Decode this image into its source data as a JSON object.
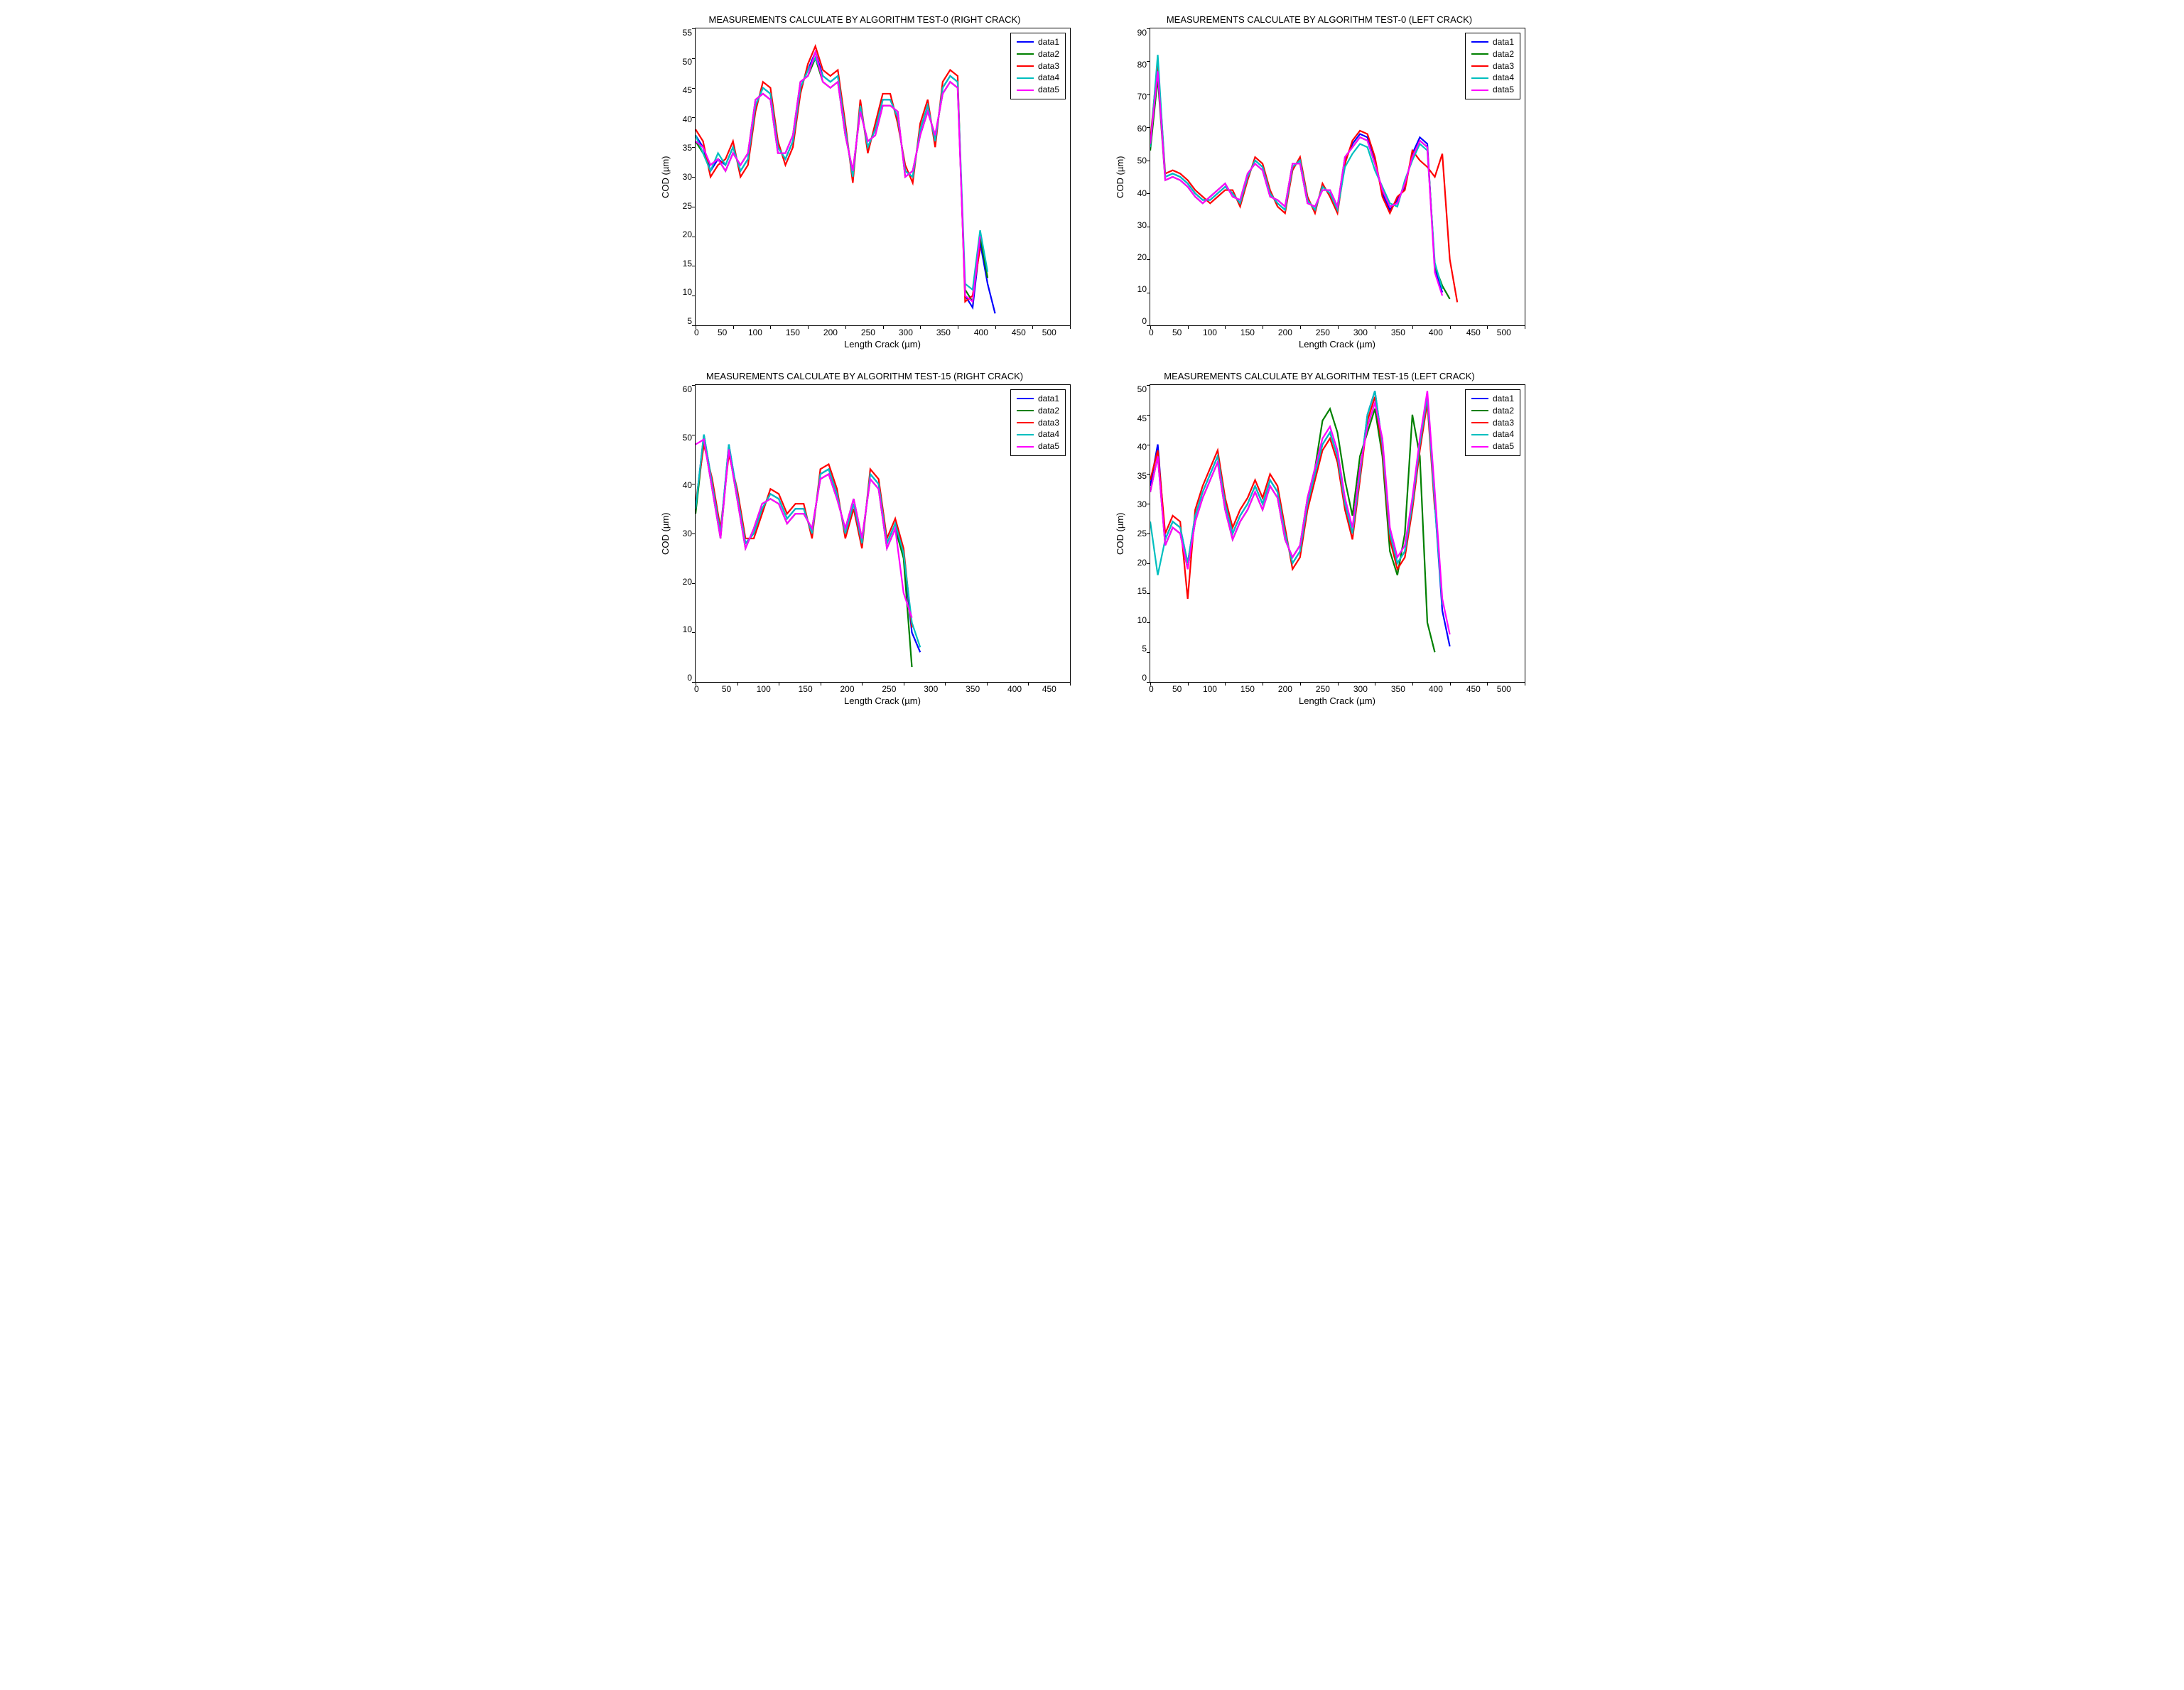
{
  "series_colors": [
    "#0000ff",
    "#008000",
    "#ff0000",
    "#00bfbf",
    "#ff00ff"
  ],
  "legend_labels": [
    "data1",
    "data2",
    "data3",
    "data4",
    "data5"
  ],
  "background_color": "#ffffff",
  "axis_color": "#000000",
  "title_fontsize": 13,
  "label_fontsize": 13,
  "tick_fontsize": 12,
  "line_width": 1,
  "panels": [
    {
      "id": "p1",
      "title": "MEASUREMENTS CALCULATE BY ALGORITHM TEST-0 (RIGHT CRACK)",
      "xlabel": "Length Crack (µm)",
      "ylabel": "COD (µm)",
      "xlim": [
        0,
        500
      ],
      "xtick_step": 50,
      "ylim": [
        5,
        55
      ],
      "ytick_step": 5,
      "type": "line",
      "xvals": [
        0,
        10,
        20,
        30,
        40,
        50,
        60,
        70,
        80,
        90,
        100,
        110,
        120,
        130,
        140,
        150,
        160,
        170,
        180,
        190,
        200,
        210,
        220,
        230,
        240,
        250,
        260,
        270,
        280,
        290,
        300,
        310,
        320,
        330,
        340,
        350,
        360,
        370,
        380,
        390,
        400
      ],
      "series": [
        {
          "name": "data1",
          "y": [
            37,
            35,
            31,
            33,
            32,
            35,
            31,
            33,
            42,
            45,
            44,
            35,
            33,
            36,
            45,
            48,
            51,
            47,
            46,
            47,
            38,
            30,
            42,
            35,
            38,
            43,
            43,
            40,
            31,
            30,
            38,
            42,
            36,
            45,
            47,
            46,
            10,
            8,
            19,
            12,
            7
          ]
        },
        {
          "name": "data2",
          "y": [
            36,
            34,
            32,
            33,
            31,
            34,
            32,
            34,
            43,
            44,
            43,
            34,
            34,
            37,
            46,
            47,
            50,
            46,
            45,
            46,
            37,
            31,
            41,
            36,
            37,
            42,
            42,
            41,
            30,
            31,
            37,
            41,
            37,
            44,
            46,
            45,
            11,
            9,
            20,
            13,
            null
          ]
        },
        {
          "name": "data3",
          "y": [
            38,
            36,
            30,
            32,
            33,
            36,
            30,
            32,
            41,
            46,
            45,
            36,
            32,
            35,
            44,
            49,
            52,
            48,
            47,
            48,
            39,
            29,
            43,
            34,
            39,
            44,
            44,
            39,
            32,
            29,
            39,
            43,
            35,
            46,
            48,
            47,
            9,
            10,
            18,
            null,
            null
          ]
        },
        {
          "name": "data4",
          "y": [
            37,
            34,
            31,
            34,
            32,
            35,
            31,
            33,
            42,
            45,
            44,
            35,
            33,
            36,
            45,
            48,
            50,
            47,
            46,
            47,
            38,
            30,
            42,
            35,
            38,
            43,
            43,
            40,
            31,
            30,
            38,
            42,
            36,
            45,
            47,
            46,
            12,
            11,
            21,
            14,
            null
          ]
        },
        {
          "name": "data5",
          "y": [
            36,
            35,
            32,
            33,
            31,
            34,
            32,
            34,
            43,
            44,
            43,
            34,
            34,
            37,
            46,
            47,
            51,
            46,
            45,
            46,
            37,
            31,
            41,
            36,
            37,
            42,
            42,
            41,
            30,
            31,
            37,
            41,
            37,
            44,
            46,
            45,
            10,
            9,
            20,
            null,
            null
          ]
        }
      ]
    },
    {
      "id": "p2",
      "title": "MEASUREMENTS CALCULATE BY ALGORITHM TEST-0 (LEFT CRACK)",
      "xlabel": "Length Crack (µm)",
      "ylabel": "COD (µm)",
      "xlim": [
        0,
        500
      ],
      "xtick_step": 50,
      "ylim": [
        0,
        90
      ],
      "ytick_step": 10,
      "type": "line",
      "xvals": [
        0,
        10,
        20,
        30,
        40,
        50,
        60,
        70,
        80,
        90,
        100,
        110,
        120,
        130,
        140,
        150,
        160,
        170,
        180,
        190,
        200,
        210,
        220,
        230,
        240,
        250,
        260,
        270,
        280,
        290,
        300,
        310,
        320,
        330,
        340,
        350,
        360,
        370,
        380,
        390,
        400,
        410
      ],
      "series": [
        {
          "name": "data1",
          "y": [
            55,
            78,
            45,
            46,
            45,
            43,
            40,
            38,
            38,
            40,
            42,
            40,
            37,
            45,
            50,
            48,
            40,
            37,
            35,
            48,
            50,
            38,
            35,
            42,
            40,
            35,
            50,
            55,
            58,
            57,
            50,
            40,
            35,
            38,
            42,
            52,
            57,
            55,
            17,
            10,
            null,
            null
          ]
        },
        {
          "name": "data2",
          "y": [
            53,
            75,
            44,
            45,
            44,
            42,
            39,
            37,
            39,
            41,
            43,
            39,
            38,
            46,
            49,
            47,
            39,
            38,
            36,
            49,
            49,
            37,
            36,
            41,
            41,
            36,
            51,
            54,
            57,
            56,
            49,
            41,
            36,
            37,
            43,
            51,
            56,
            54,
            18,
            12,
            8,
            null
          ]
        },
        {
          "name": "data3",
          "y": [
            56,
            80,
            46,
            47,
            46,
            44,
            41,
            39,
            37,
            39,
            41,
            41,
            36,
            44,
            51,
            49,
            41,
            36,
            34,
            47,
            51,
            39,
            34,
            43,
            39,
            34,
            49,
            56,
            59,
            58,
            51,
            39,
            34,
            39,
            41,
            53,
            50,
            48,
            45,
            52,
            20,
            7
          ]
        },
        {
          "name": "data4",
          "y": [
            54,
            82,
            45,
            46,
            45,
            43,
            40,
            38,
            38,
            40,
            42,
            40,
            37,
            45,
            50,
            48,
            40,
            37,
            35,
            48,
            50,
            38,
            35,
            42,
            40,
            35,
            48,
            52,
            55,
            54,
            47,
            42,
            37,
            36,
            44,
            50,
            55,
            53,
            19,
            11,
            null,
            null
          ]
        },
        {
          "name": "data5",
          "y": [
            55,
            77,
            44,
            45,
            44,
            42,
            39,
            37,
            39,
            41,
            43,
            39,
            38,
            46,
            49,
            47,
            39,
            38,
            36,
            49,
            49,
            37,
            36,
            41,
            41,
            36,
            51,
            54,
            57,
            56,
            49,
            41,
            36,
            37,
            43,
            51,
            56,
            54,
            16,
            9,
            null,
            null
          ]
        }
      ]
    },
    {
      "id": "p3",
      "title": "MEASUREMENTS CALCULATE BY ALGORITHM TEST-15 (RIGHT CRACK)",
      "xlabel": "Length Crack (µm)",
      "ylabel": "COD (µm)",
      "xlim": [
        0,
        450
      ],
      "xtick_step": 50,
      "ylim": [
        0,
        60
      ],
      "ytick_step": 10,
      "type": "line",
      "xvals": [
        0,
        10,
        20,
        30,
        40,
        50,
        60,
        70,
        80,
        90,
        100,
        110,
        120,
        130,
        140,
        150,
        160,
        170,
        180,
        190,
        200,
        210,
        220,
        230,
        240,
        250,
        260,
        270
      ],
      "series": [
        {
          "name": "data1",
          "y": [
            35,
            50,
            40,
            30,
            48,
            38,
            28,
            30,
            35,
            38,
            37,
            33,
            35,
            35,
            30,
            42,
            43,
            38,
            30,
            36,
            28,
            42,
            40,
            28,
            32,
            26,
            10,
            6
          ]
        },
        {
          "name": "data2",
          "y": [
            34,
            49,
            39,
            29,
            47,
            37,
            27,
            31,
            36,
            37,
            36,
            32,
            34,
            34,
            31,
            41,
            42,
            37,
            31,
            37,
            29,
            41,
            39,
            27,
            31,
            25,
            3,
            null
          ]
        },
        {
          "name": "data3",
          "y": [
            36,
            48,
            41,
            31,
            46,
            39,
            29,
            29,
            34,
            39,
            38,
            34,
            36,
            36,
            29,
            43,
            44,
            39,
            29,
            35,
            27,
            43,
            41,
            29,
            33,
            27,
            11,
            null
          ]
        },
        {
          "name": "data4",
          "y": [
            35,
            50,
            40,
            30,
            48,
            38,
            28,
            30,
            35,
            38,
            37,
            33,
            35,
            35,
            30,
            42,
            43,
            38,
            30,
            36,
            28,
            42,
            40,
            28,
            32,
            26,
            12,
            7
          ]
        },
        {
          "name": "data5",
          "y": [
            48,
            49,
            39,
            29,
            47,
            37,
            27,
            31,
            36,
            37,
            36,
            32,
            34,
            34,
            31,
            41,
            42,
            37,
            31,
            37,
            29,
            41,
            39,
            27,
            31,
            18,
            13,
            null
          ]
        }
      ]
    },
    {
      "id": "p4",
      "title": "MEASUREMENTS CALCULATE BY ALGORITHM TEST-15 (LEFT CRACK)",
      "xlabel": "Length Crack (µm)",
      "ylabel": "COD (µm)",
      "xlim": [
        0,
        500
      ],
      "xtick_step": 50,
      "ylim": [
        0,
        50
      ],
      "ytick_step": 5,
      "type": "line",
      "xvals": [
        0,
        10,
        20,
        30,
        40,
        50,
        60,
        70,
        80,
        90,
        100,
        110,
        120,
        130,
        140,
        150,
        160,
        170,
        180,
        190,
        200,
        210,
        220,
        230,
        240,
        250,
        260,
        270,
        280,
        290,
        300,
        310,
        320,
        330,
        340,
        350,
        360,
        370,
        380,
        390,
        400
      ],
      "series": [
        {
          "name": "data1",
          "y": [
            33,
            40,
            24,
            27,
            26,
            20,
            28,
            32,
            35,
            38,
            30,
            25,
            28,
            30,
            33,
            30,
            34,
            32,
            25,
            20,
            22,
            30,
            35,
            40,
            42,
            38,
            30,
            25,
            35,
            45,
            49,
            40,
            25,
            20,
            22,
            30,
            40,
            48,
            30,
            12,
            6
          ]
        },
        {
          "name": "data2",
          "y": [
            32,
            38,
            23,
            26,
            25,
            19,
            27,
            31,
            34,
            37,
            29,
            24,
            27,
            29,
            32,
            29,
            33,
            31,
            24,
            21,
            23,
            31,
            36,
            44,
            46,
            42,
            34,
            28,
            38,
            42,
            46,
            38,
            22,
            18,
            25,
            45,
            38,
            10,
            5,
            null,
            null
          ]
        },
        {
          "name": "data3",
          "y": [
            34,
            39,
            25,
            28,
            27,
            14,
            29,
            33,
            36,
            39,
            31,
            26,
            29,
            31,
            34,
            31,
            35,
            33,
            26,
            19,
            21,
            29,
            34,
            39,
            41,
            37,
            29,
            24,
            34,
            44,
            48,
            39,
            24,
            19,
            21,
            29,
            39,
            47,
            29,
            null,
            null
          ]
        },
        {
          "name": "data4",
          "y": [
            27,
            18,
            24,
            27,
            26,
            20,
            28,
            32,
            35,
            38,
            30,
            25,
            28,
            30,
            33,
            30,
            34,
            32,
            25,
            20,
            22,
            30,
            35,
            40,
            42,
            38,
            30,
            25,
            35,
            45,
            49,
            40,
            25,
            20,
            22,
            30,
            40,
            48,
            30,
            13,
            null
          ]
        },
        {
          "name": "data5",
          "y": [
            32,
            38,
            23,
            26,
            25,
            19,
            27,
            31,
            34,
            37,
            29,
            24,
            27,
            29,
            32,
            29,
            33,
            31,
            24,
            21,
            23,
            31,
            36,
            41,
            43,
            39,
            31,
            26,
            36,
            43,
            47,
            41,
            26,
            21,
            23,
            31,
            41,
            49,
            32,
            14,
            8
          ]
        }
      ]
    }
  ]
}
